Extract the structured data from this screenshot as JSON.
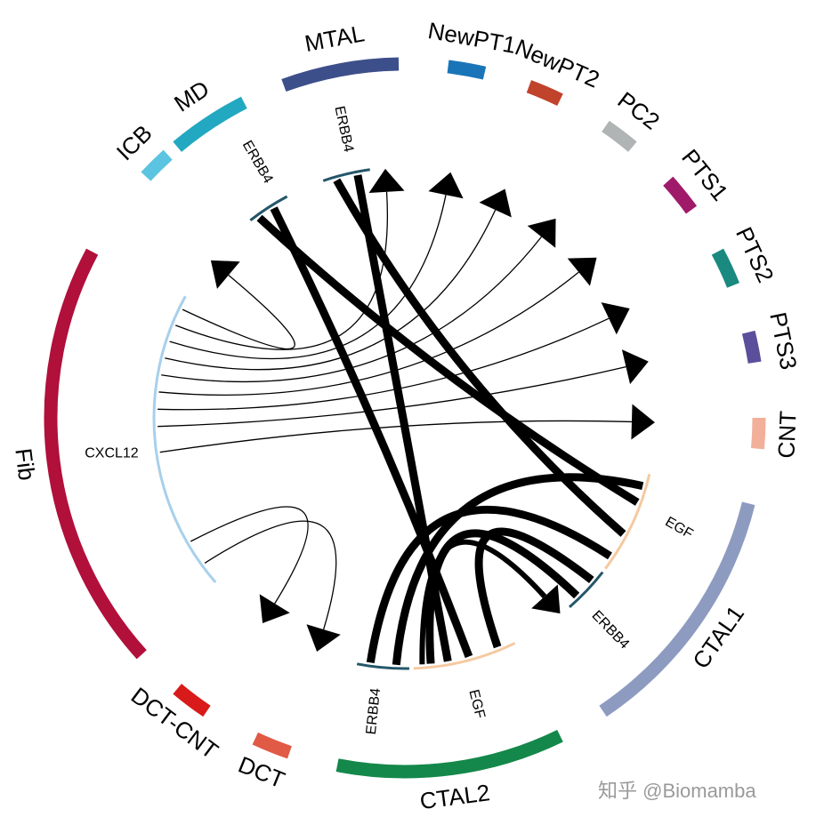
{
  "sectors": [
    {
      "label": "MTAL",
      "color": "#3d4f8a"
    },
    {
      "label": "NewPT1",
      "color": "#1a75b8"
    },
    {
      "label": "NewPT2",
      "color": "#c0432b"
    },
    {
      "label": "PC2",
      "color": "#b0b4b4"
    },
    {
      "label": "PTS1",
      "color": "#a01a6a"
    },
    {
      "label": "PTS2",
      "color": "#1a8a80"
    },
    {
      "label": "PTS3",
      "color": "#5b4e9a"
    },
    {
      "label": "CNT",
      "color": "#f2b09a"
    },
    {
      "label": "CTAL1",
      "color": "#8e9bc0"
    },
    {
      "label": "CTAL2",
      "color": "#14884a"
    },
    {
      "label": "DCT",
      "color": "#e05a45"
    },
    {
      "label": "DCT-CNT",
      "color": "#d91a1a"
    },
    {
      "label": "Fib",
      "color": "#b0103a"
    },
    {
      "label": "ICB",
      "color": "#5bc4e0"
    },
    {
      "label": "MD",
      "color": "#22a8c0"
    }
  ],
  "genes": [
    {
      "label": "ERBB4",
      "color": "#24566a"
    },
    {
      "label": "ERBB4",
      "color": "#24566a"
    },
    {
      "label": "CXCL12",
      "color": "#a8d0ec"
    },
    {
      "label": "EGF",
      "color": "#f5c9a0"
    },
    {
      "label": "ERBB4",
      "color": "#24566a"
    },
    {
      "label": "ERBB4",
      "color": "#24566a"
    },
    {
      "label": "EGF",
      "color": "#f5c9a0"
    }
  ],
  "watermark": "知乎 @Biomamba"
}
